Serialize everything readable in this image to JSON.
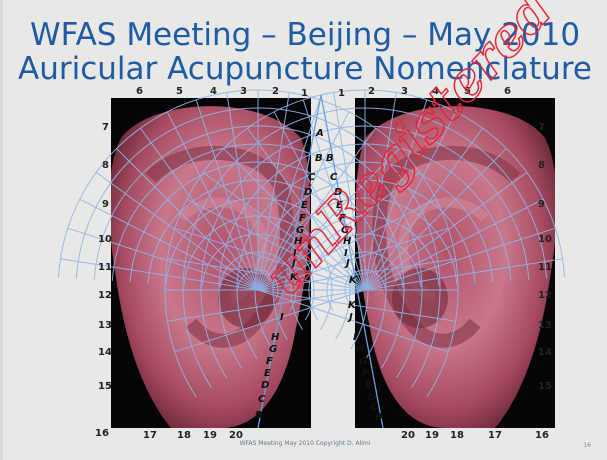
{
  "title_line1": "WFAS Meeting – Beijing – May 2010",
  "title_line2": "Auricular Acupuncture Nomenclature",
  "footer": "WFAS Meeting May 2010 Copyright D. Alimi",
  "page_number": "16",
  "watermark": "unRegistered",
  "top_numbers_left": [
    "6",
    "5",
    "4",
    "3",
    "2",
    "1"
  ],
  "top_numbers_right": [
    "1",
    "2",
    "3",
    "4",
    "5",
    "6"
  ],
  "side_numbers": [
    "7",
    "8",
    "9",
    "10",
    "11",
    "12",
    "13",
    "14",
    "15"
  ],
  "bottom_numbers_left": [
    "16",
    "17",
    "18",
    "19",
    "20"
  ],
  "bottom_numbers_right": [
    "20",
    "19",
    "18",
    "17",
    "16"
  ],
  "center_letter_top": "A",
  "upper_letters_left": [
    "B",
    "C",
    "D",
    "E",
    "F",
    "G",
    "H",
    "I",
    "J",
    "K"
  ],
  "upper_letters_right": [
    "B",
    "C",
    "D",
    "E",
    "F",
    "G",
    "H",
    "I",
    "J",
    "K"
  ],
  "lower_letters_left": [
    "I",
    "H",
    "G",
    "F",
    "E",
    "D",
    "C",
    "B"
  ],
  "lower_letters_right": [
    "K",
    "J",
    "I",
    "H",
    "G",
    "F",
    "E",
    "D",
    "C",
    "B"
  ]
}
